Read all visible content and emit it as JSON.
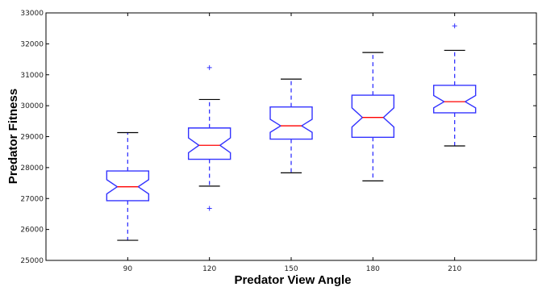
{
  "chart_data": {
    "type": "boxplot",
    "notched": true,
    "xlabel": "Predator View Angle",
    "ylabel": "Predator Fitness",
    "categories": [
      "90",
      "120",
      "150",
      "180",
      "210"
    ],
    "ylim": [
      25000,
      33000
    ],
    "yticks": [
      25000,
      26000,
      27000,
      28000,
      29000,
      30000,
      31000,
      32000,
      33000
    ],
    "grid": false,
    "boxes": [
      {
        "label": "90",
        "whisker_low": 25650,
        "q1": 26930,
        "median": 27380,
        "q3": 27890,
        "whisker_high": 29130,
        "notch_low": 27150,
        "notch_high": 27610,
        "outliers": []
      },
      {
        "label": "120",
        "whisker_low": 27400,
        "q1": 28270,
        "median": 28720,
        "q3": 29280,
        "whisker_high": 30200,
        "notch_low": 28480,
        "notch_high": 28960,
        "outliers": [
          31230,
          26680
        ]
      },
      {
        "label": "150",
        "whisker_low": 27830,
        "q1": 28920,
        "median": 29350,
        "q3": 29960,
        "whisker_high": 30860,
        "notch_low": 29140,
        "notch_high": 29560,
        "outliers": []
      },
      {
        "label": "180",
        "whisker_low": 27570,
        "q1": 28980,
        "median": 29620,
        "q3": 30340,
        "whisker_high": 31720,
        "notch_low": 29310,
        "notch_high": 29930,
        "outliers": []
      },
      {
        "label": "210",
        "whisker_low": 28700,
        "q1": 29770,
        "median": 30130,
        "q3": 30660,
        "whisker_high": 31790,
        "notch_low": 29930,
        "notch_high": 30330,
        "outliers": [
          32580
        ]
      }
    ],
    "colors": {
      "box": "#3333ff",
      "median": "#ff0000",
      "whisker": "#3333ff",
      "cap": "#000000",
      "outlier": "#3333ff",
      "axis": "#000000"
    }
  }
}
